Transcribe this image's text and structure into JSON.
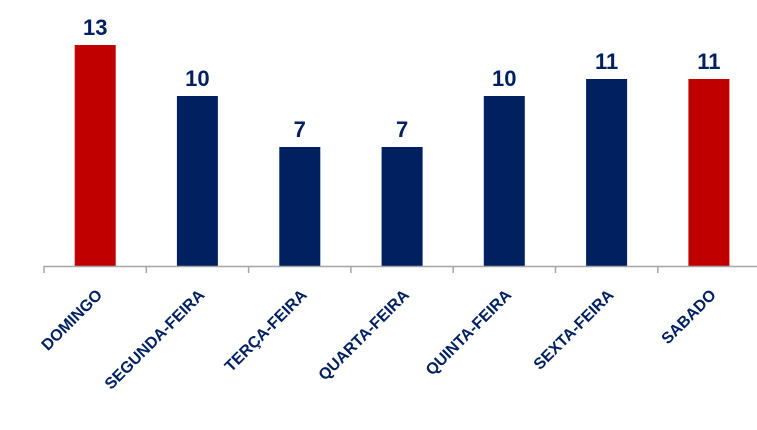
{
  "chart_data": {
    "type": "bar",
    "categories": [
      "DOMINGO",
      "SEGUNDA-FEIRA",
      "TERÇA-FEIRA",
      "QUARTA-FEIRA",
      "QUINTA-FEIRA",
      "SEXTA-FEIRA",
      "SABADO"
    ],
    "values": [
      13,
      10,
      7,
      7,
      10,
      11,
      11
    ],
    "data_labels": [
      "13",
      "10",
      "7",
      "7",
      "10",
      "11",
      "11"
    ],
    "bar_colors": [
      "#c00000",
      "#002060",
      "#002060",
      "#002060",
      "#002060",
      "#002060",
      "#c00000"
    ],
    "label_color": "#002060",
    "axis_color": "#a6a6a6",
    "title": "",
    "xlabel": "",
    "ylabel": "",
    "ylim": [
      0,
      13
    ],
    "grid": false,
    "legend": "none"
  }
}
